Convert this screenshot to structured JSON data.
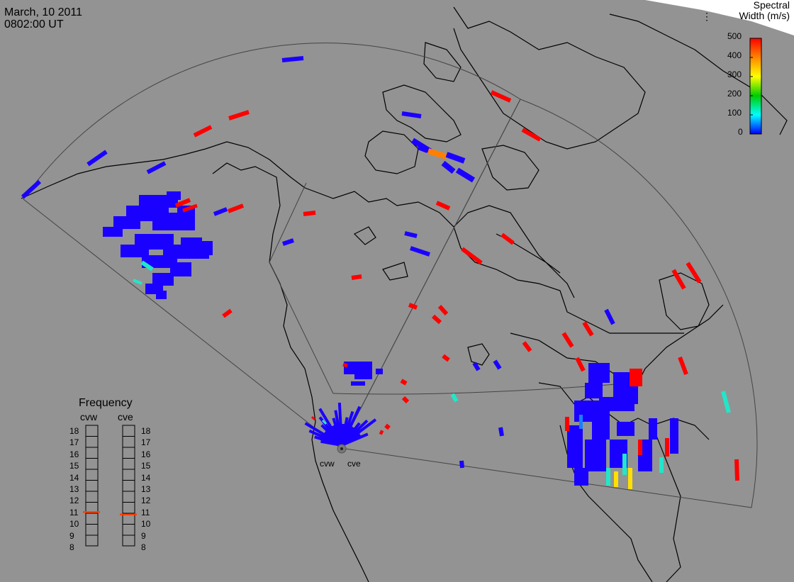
{
  "header": {
    "date": "March, 10 2011",
    "time": "0802:00 UT"
  },
  "colorbar": {
    "title_line1": "Spectral",
    "title_line2": "Width (m/s)",
    "ticks": [
      "500",
      "400",
      "300",
      "200",
      "100",
      "0"
    ],
    "colors": [
      "#ff0000",
      "#ffa500",
      "#ffff00",
      "#00cc00",
      "#00ffff",
      "#0000ff"
    ]
  },
  "frequency": {
    "title": "Frequency",
    "radars": [
      {
        "name": "cvw",
        "value_mhz": 10.8
      },
      {
        "name": "cve",
        "value_mhz": 10.6
      }
    ],
    "scale": [
      "18",
      "17",
      "16",
      "15",
      "14",
      "13",
      "12",
      "11",
      "10",
      "9",
      "8"
    ]
  },
  "radar_labels": [
    "cvw",
    "cve"
  ],
  "colors": {
    "background": "#939393",
    "coastline": "#000000",
    "echo_blue": "#1a00ff",
    "echo_red": "#ff0000",
    "echo_cyan": "#22e6c8",
    "echo_orange": "#ff8000",
    "echo_yellow": "#ffe000",
    "frequency_marker": "#ff4000"
  }
}
